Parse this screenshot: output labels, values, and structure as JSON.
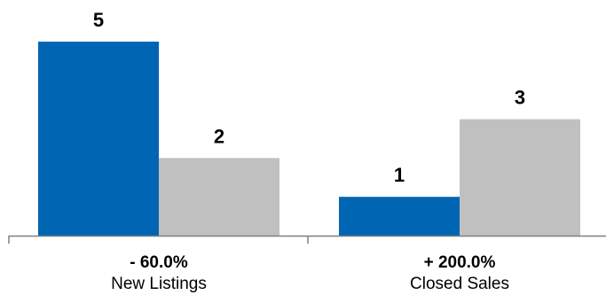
{
  "chart_data": {
    "type": "bar",
    "categories": [
      "New Listings",
      "Closed Sales"
    ],
    "category_changes": [
      "- 60.0%",
      "+ 200.0%"
    ],
    "series": [
      {
        "values": [
          5,
          1
        ],
        "color": "#0066b3"
      },
      {
        "values": [
          2,
          3
        ],
        "color": "#c0c0c0"
      }
    ],
    "ylim": [
      0,
      5
    ],
    "grid": false,
    "legend": "none"
  }
}
